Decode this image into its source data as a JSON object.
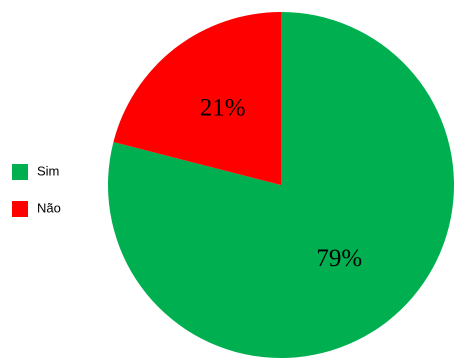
{
  "chart_data": {
    "type": "pie",
    "categories": [
      "Sim",
      "Não"
    ],
    "values": [
      79,
      21
    ],
    "value_labels": [
      "79%",
      "21%"
    ],
    "colors": [
      "#00b050",
      "#ff0000"
    ],
    "legend": "left"
  }
}
